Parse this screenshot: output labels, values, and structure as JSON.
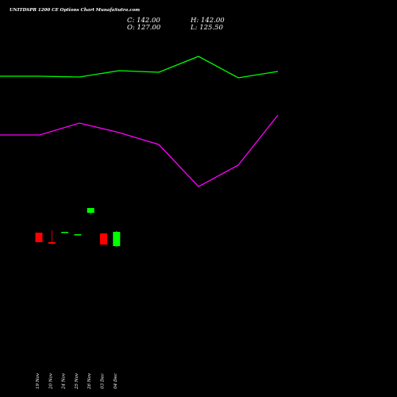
{
  "header": {
    "title": "UNITDSPR 1200  CE Options  Chart MunafaSutra.com",
    "close": "C: 142.00",
    "high": "H: 142.00",
    "open": "O: 127.00",
    "low": "L: 125.50"
  },
  "chart_data": {
    "type": "candlestick",
    "title": "UNITDSPR 1200  CE Options  Chart MunafaSutra.com",
    "x_tick_labels": [
      "19 Nov",
      "20 Nov",
      "24 Nov",
      "25 Nov",
      "26 Nov",
      "03 Dec",
      "04 Dec"
    ],
    "ylim": [
      0,
      500
    ],
    "candles": [
      {
        "open": 207,
        "high": 207,
        "low": 195,
        "close": 195,
        "color": "#ff0000"
      },
      {
        "open": 195,
        "high": 210,
        "low": 192,
        "close": 193,
        "color": "#ff0000"
      },
      {
        "open": 208,
        "high": 208,
        "low": 208,
        "close": 208,
        "color": "#00ff00"
      },
      {
        "open": 205,
        "high": 205,
        "low": 205,
        "close": 205,
        "color": "#00ff00"
      },
      {
        "open": 232,
        "high": 238,
        "low": 230,
        "close": 238,
        "color": "#00ff00"
      },
      {
        "open": 206,
        "high": 206,
        "low": 192,
        "close": 192,
        "color": "#ff0000"
      },
      {
        "open": 190,
        "high": 209,
        "low": 189,
        "close": 208,
        "color": "#00ff00"
      }
    ],
    "series": [
      {
        "color": "#00ff00",
        "x": [
          0,
          50,
          100,
          150,
          200,
          250,
          300,
          350
        ],
        "values": [
          404,
          404,
          403,
          411,
          409,
          429,
          402,
          410
        ]
      },
      {
        "color": "#ff00ff",
        "x": [
          0,
          50,
          100,
          150,
          200,
          250,
          300,
          350
        ],
        "values": [
          330,
          330,
          345,
          333,
          318,
          265,
          292,
          355
        ]
      }
    ],
    "colors": {
      "background": "#000000",
      "up": "#00ff00",
      "down": "#ff0000",
      "text": "#ffffff"
    }
  }
}
